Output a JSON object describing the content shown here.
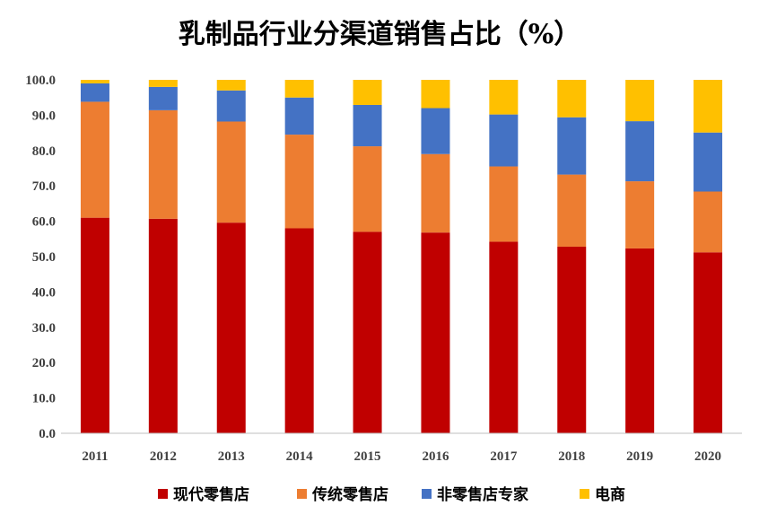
{
  "chart_data": {
    "type": "bar",
    "stacked": true,
    "title": "乳制品行业分渠道销售占比（%）",
    "categories": [
      "2011",
      "2012",
      "2013",
      "2014",
      "2015",
      "2016",
      "2017",
      "2018",
      "2019",
      "2020"
    ],
    "series": [
      {
        "name": "现代零售店",
        "color": "#C00000",
        "values": [
          61.0,
          60.7,
          59.6,
          58.0,
          57.0,
          56.8,
          54.2,
          52.8,
          52.3,
          51.2
        ]
      },
      {
        "name": "传统零售店",
        "color": "#ED7D31",
        "values": [
          32.8,
          30.7,
          28.6,
          26.5,
          24.2,
          22.2,
          21.3,
          20.4,
          19.0,
          17.2
        ]
      },
      {
        "name": "非零售店专家",
        "color": "#4472C4",
        "values": [
          5.2,
          6.6,
          8.8,
          10.5,
          11.7,
          13.0,
          14.7,
          16.2,
          17.0,
          16.7
        ]
      },
      {
        "name": "电商",
        "color": "#FFC000",
        "values": [
          1.0,
          2.0,
          3.0,
          5.0,
          7.1,
          8.0,
          9.8,
          10.6,
          11.7,
          14.9
        ]
      }
    ],
    "ylim": [
      0,
      100
    ],
    "yticks": [
      "0.0",
      "10.0",
      "20.0",
      "30.0",
      "40.0",
      "50.0",
      "60.0",
      "70.0",
      "80.0",
      "90.0",
      "100.0"
    ],
    "xlabel": "",
    "ylabel": "",
    "grid": false,
    "legend_position": "bottom"
  }
}
